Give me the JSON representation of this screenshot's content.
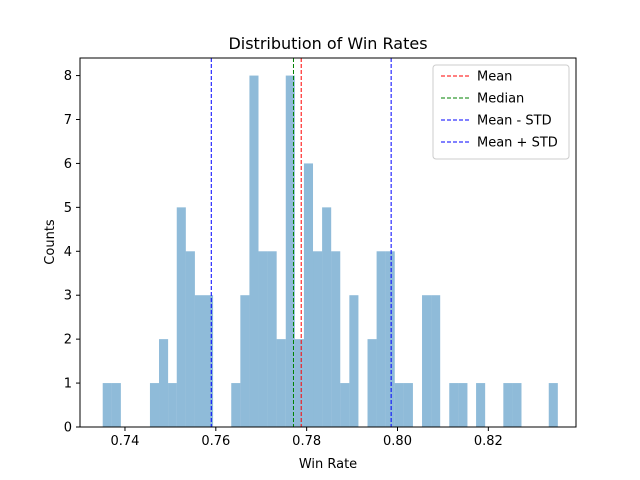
{
  "chart_data": {
    "type": "bar",
    "title": "Distribution of Win Rates",
    "xlabel": "Win Rate",
    "ylabel": "Counts",
    "xlim": [
      0.7301,
      0.8393
    ],
    "ylim": [
      0,
      8.4
    ],
    "xticks": [
      0.74,
      0.76,
      0.78,
      0.8,
      0.82
    ],
    "xtick_labels": [
      "0.74",
      "0.76",
      "0.78",
      "0.80",
      "0.82"
    ],
    "yticks": [
      0,
      1,
      2,
      3,
      4,
      5,
      6,
      7,
      8
    ],
    "ytick_labels": [
      "0",
      "1",
      "2",
      "3",
      "4",
      "5",
      "6",
      "7",
      "8"
    ],
    "bar_color": "#1f77b4",
    "bar_alpha": 0.5,
    "bins": [
      {
        "x0": 0.7351,
        "x1": 0.7371,
        "count": 1
      },
      {
        "x0": 0.7371,
        "x1": 0.7391,
        "count": 1
      },
      {
        "x0": 0.7455,
        "x1": 0.7475,
        "count": 1
      },
      {
        "x0": 0.7475,
        "x1": 0.7495,
        "count": 2
      },
      {
        "x0": 0.7495,
        "x1": 0.7514,
        "count": 1
      },
      {
        "x0": 0.7514,
        "x1": 0.7534,
        "count": 5
      },
      {
        "x0": 0.7534,
        "x1": 0.7554,
        "count": 4
      },
      {
        "x0": 0.7554,
        "x1": 0.7574,
        "count": 3
      },
      {
        "x0": 0.7574,
        "x1": 0.7594,
        "count": 3
      },
      {
        "x0": 0.7634,
        "x1": 0.7654,
        "count": 1
      },
      {
        "x0": 0.7654,
        "x1": 0.7674,
        "count": 3
      },
      {
        "x0": 0.7674,
        "x1": 0.7694,
        "count": 8
      },
      {
        "x0": 0.7694,
        "x1": 0.7714,
        "count": 4
      },
      {
        "x0": 0.7714,
        "x1": 0.7734,
        "count": 4
      },
      {
        "x0": 0.7734,
        "x1": 0.7754,
        "count": 2
      },
      {
        "x0": 0.7754,
        "x1": 0.7774,
        "count": 8
      },
      {
        "x0": 0.7774,
        "x1": 0.7794,
        "count": 2
      },
      {
        "x0": 0.7794,
        "x1": 0.7814,
        "count": 6
      },
      {
        "x0": 0.7814,
        "x1": 0.7834,
        "count": 4
      },
      {
        "x0": 0.7834,
        "x1": 0.7854,
        "count": 5
      },
      {
        "x0": 0.7854,
        "x1": 0.7874,
        "count": 4
      },
      {
        "x0": 0.7874,
        "x1": 0.7894,
        "count": 1
      },
      {
        "x0": 0.7894,
        "x1": 0.7914,
        "count": 3
      },
      {
        "x0": 0.7934,
        "x1": 0.7954,
        "count": 2
      },
      {
        "x0": 0.7954,
        "x1": 0.7974,
        "count": 4
      },
      {
        "x0": 0.7974,
        "x1": 0.7994,
        "count": 4
      },
      {
        "x0": 0.7994,
        "x1": 0.8014,
        "count": 1
      },
      {
        "x0": 0.8014,
        "x1": 0.8034,
        "count": 1
      },
      {
        "x0": 0.8054,
        "x1": 0.8074,
        "count": 3
      },
      {
        "x0": 0.8074,
        "x1": 0.8094,
        "count": 3
      },
      {
        "x0": 0.8114,
        "x1": 0.8134,
        "count": 1
      },
      {
        "x0": 0.8134,
        "x1": 0.8154,
        "count": 1
      },
      {
        "x0": 0.8173,
        "x1": 0.8193,
        "count": 1
      },
      {
        "x0": 0.8233,
        "x1": 0.8253,
        "count": 1
      },
      {
        "x0": 0.8253,
        "x1": 0.8273,
        "count": 1
      },
      {
        "x0": 0.8333,
        "x1": 0.8353,
        "count": 1
      }
    ],
    "reference_lines": [
      {
        "name": "Mean",
        "value": 0.7788,
        "color": "#ff0000"
      },
      {
        "name": "Median",
        "value": 0.7771,
        "color": "#008000"
      },
      {
        "name": "Mean - STD",
        "value": 0.759,
        "color": "#0000ff"
      },
      {
        "name": "Mean + STD",
        "value": 0.7986,
        "color": "#0000ff"
      }
    ],
    "legend_position": "top-right",
    "grid": false
  }
}
